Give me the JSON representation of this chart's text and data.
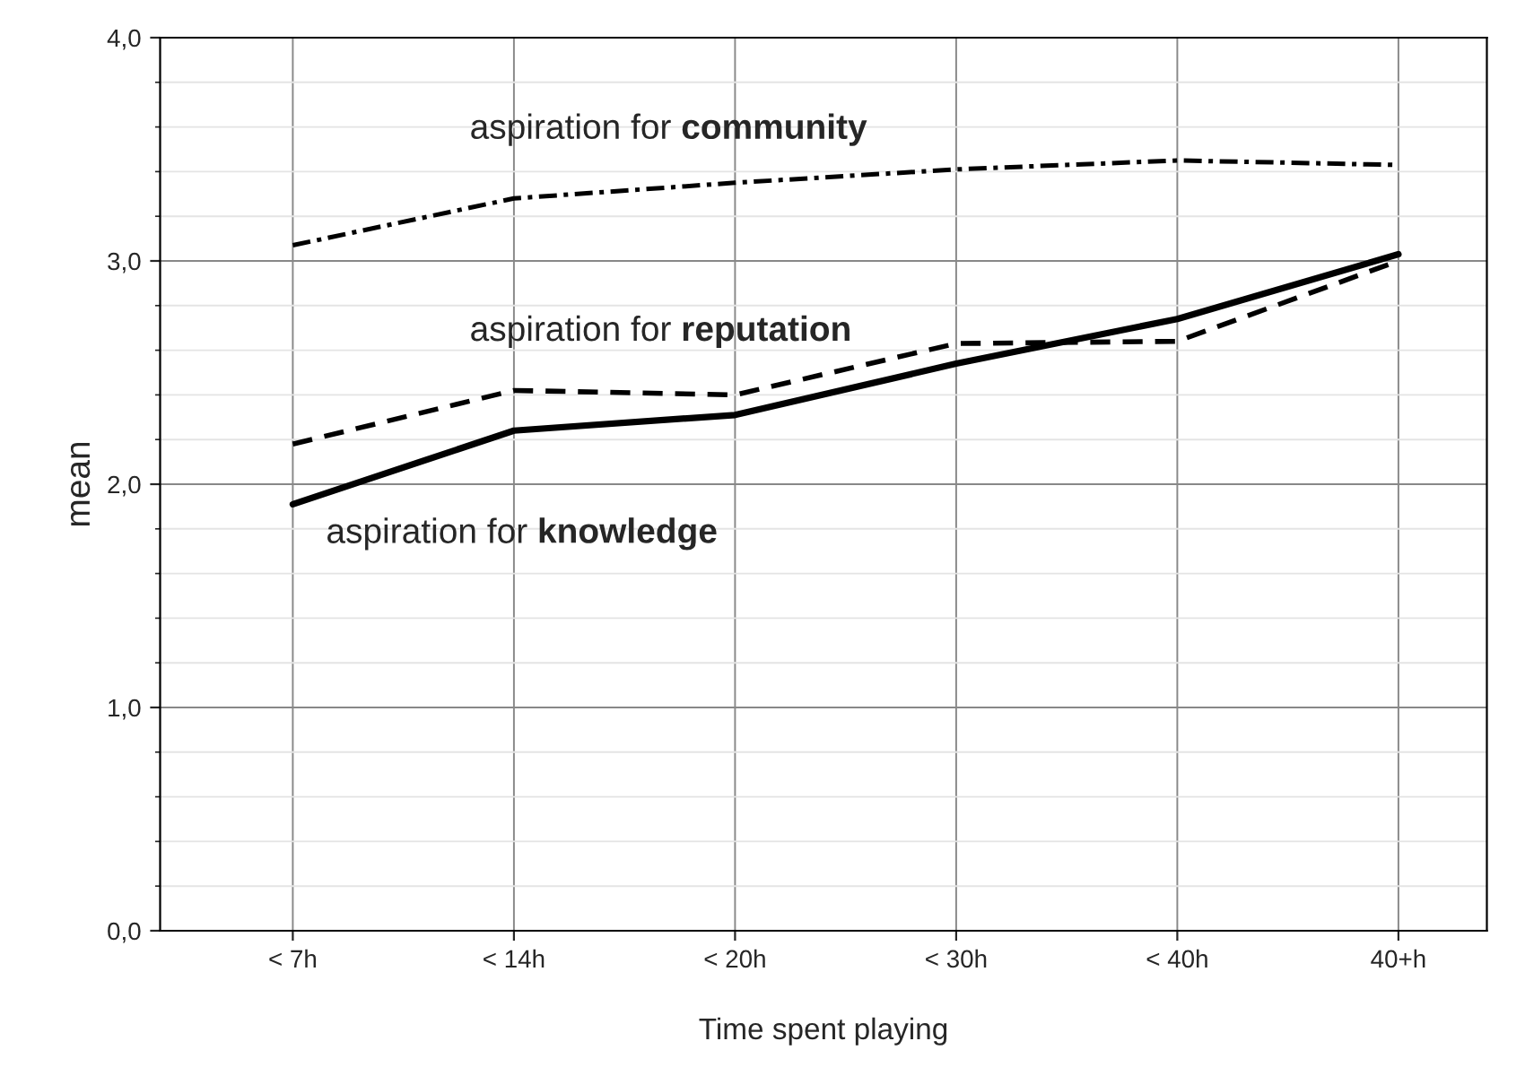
{
  "chart_data": {
    "type": "line",
    "xlabel": "Time spent playing",
    "ylabel": "mean",
    "categories": [
      "< 7h",
      "< 14h",
      "< 20h",
      "< 30h",
      "< 40h",
      "40+h"
    ],
    "series": [
      {
        "name": "aspiration for community",
        "color": "#000000",
        "line_style": "dashdot",
        "values": [
          3.07,
          3.28,
          3.35,
          3.41,
          3.45,
          3.43
        ]
      },
      {
        "name": "aspiration for reputation",
        "color": "#000000",
        "line_style": "dashed",
        "values": [
          2.18,
          2.42,
          2.4,
          2.63,
          2.64,
          3.0
        ]
      },
      {
        "name": "aspiration for knowledge",
        "color": "#000000",
        "line_style": "solid",
        "values": [
          1.91,
          2.24,
          2.31,
          2.54,
          2.74,
          3.03
        ]
      }
    ],
    "ylim": [
      0,
      4
    ],
    "yticks": [
      {
        "value": 0,
        "label": "0,0"
      },
      {
        "value": 1,
        "label": "1,0"
      },
      {
        "value": 2,
        "label": "2,0"
      },
      {
        "value": 3,
        "label": "3,0"
      },
      {
        "value": 4,
        "label": "4,0"
      }
    ],
    "grid": true,
    "legend": false
  }
}
